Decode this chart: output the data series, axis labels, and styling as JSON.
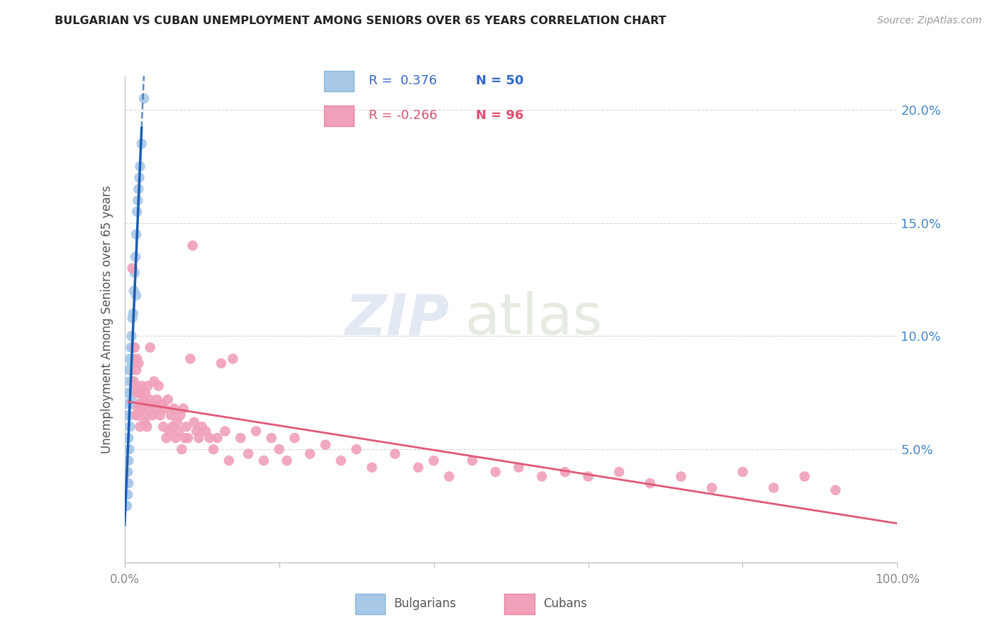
{
  "title": "BULGARIAN VS CUBAN UNEMPLOYMENT AMONG SENIORS OVER 65 YEARS CORRELATION CHART",
  "source": "Source: ZipAtlas.com",
  "ylabel": "Unemployment Among Seniors over 65 years",
  "bg_color": "#ffffff",
  "grid_color": "#cccccc",
  "bulgarian_color": "#a8c8e8",
  "cuban_color": "#f0a0b8",
  "bulgarian_line_color": "#1a5cb0",
  "cuban_line_color": "#e05878",
  "right_axis_color": "#4488cc",
  "R_bulgarian": 0.376,
  "N_bulgarian": 50,
  "R_cuban": -0.266,
  "N_cuban": 96,
  "xlim": [
    0.0,
    1.0
  ],
  "ylim": [
    0.0,
    0.215
  ],
  "yticks": [
    0.0,
    0.05,
    0.1,
    0.15,
    0.2
  ],
  "watermark_zip": "ZIP",
  "watermark_atlas": "atlas",
  "bulgarian_x": [
    0.002,
    0.002,
    0.003,
    0.003,
    0.003,
    0.003,
    0.004,
    0.004,
    0.004,
    0.004,
    0.004,
    0.005,
    0.005,
    0.005,
    0.005,
    0.005,
    0.005,
    0.006,
    0.006,
    0.006,
    0.006,
    0.006,
    0.007,
    0.007,
    0.007,
    0.007,
    0.008,
    0.008,
    0.008,
    0.009,
    0.009,
    0.009,
    0.01,
    0.01,
    0.01,
    0.011,
    0.011,
    0.012,
    0.012,
    0.013,
    0.014,
    0.015,
    0.015,
    0.016,
    0.017,
    0.018,
    0.019,
    0.02,
    0.022,
    0.025
  ],
  "bulgarian_y": [
    0.03,
    0.025,
    0.045,
    0.04,
    0.035,
    0.025,
    0.055,
    0.05,
    0.045,
    0.04,
    0.03,
    0.075,
    0.07,
    0.065,
    0.055,
    0.045,
    0.035,
    0.085,
    0.08,
    0.075,
    0.065,
    0.05,
    0.09,
    0.085,
    0.075,
    0.06,
    0.095,
    0.085,
    0.07,
    0.1,
    0.088,
    0.072,
    0.108,
    0.095,
    0.08,
    0.11,
    0.09,
    0.12,
    0.095,
    0.128,
    0.135,
    0.145,
    0.118,
    0.155,
    0.16,
    0.165,
    0.17,
    0.175,
    0.185,
    0.205
  ],
  "cuban_x": [
    0.01,
    0.012,
    0.013,
    0.014,
    0.015,
    0.015,
    0.016,
    0.016,
    0.017,
    0.018,
    0.018,
    0.019,
    0.02,
    0.02,
    0.022,
    0.023,
    0.024,
    0.025,
    0.026,
    0.027,
    0.028,
    0.029,
    0.03,
    0.03,
    0.032,
    0.033,
    0.035,
    0.036,
    0.038,
    0.04,
    0.042,
    0.044,
    0.046,
    0.048,
    0.05,
    0.052,
    0.054,
    0.056,
    0.058,
    0.06,
    0.062,
    0.064,
    0.066,
    0.068,
    0.07,
    0.072,
    0.074,
    0.076,
    0.078,
    0.08,
    0.082,
    0.085,
    0.088,
    0.09,
    0.093,
    0.096,
    0.1,
    0.105,
    0.11,
    0.115,
    0.12,
    0.125,
    0.13,
    0.135,
    0.14,
    0.15,
    0.16,
    0.17,
    0.18,
    0.19,
    0.2,
    0.21,
    0.22,
    0.24,
    0.26,
    0.28,
    0.3,
    0.32,
    0.35,
    0.38,
    0.4,
    0.42,
    0.45,
    0.48,
    0.51,
    0.54,
    0.57,
    0.6,
    0.64,
    0.68,
    0.72,
    0.76,
    0.8,
    0.84,
    0.88,
    0.92
  ],
  "cuban_y": [
    0.13,
    0.08,
    0.095,
    0.078,
    0.085,
    0.065,
    0.09,
    0.075,
    0.068,
    0.088,
    0.065,
    0.07,
    0.075,
    0.06,
    0.078,
    0.068,
    0.072,
    0.07,
    0.062,
    0.075,
    0.065,
    0.06,
    0.078,
    0.068,
    0.072,
    0.095,
    0.07,
    0.065,
    0.08,
    0.068,
    0.072,
    0.078,
    0.065,
    0.07,
    0.06,
    0.068,
    0.055,
    0.072,
    0.058,
    0.065,
    0.06,
    0.068,
    0.055,
    0.062,
    0.058,
    0.065,
    0.05,
    0.068,
    0.055,
    0.06,
    0.055,
    0.09,
    0.14,
    0.062,
    0.058,
    0.055,
    0.06,
    0.058,
    0.055,
    0.05,
    0.055,
    0.088,
    0.058,
    0.045,
    0.09,
    0.055,
    0.048,
    0.058,
    0.045,
    0.055,
    0.05,
    0.045,
    0.055,
    0.048,
    0.052,
    0.045,
    0.05,
    0.042,
    0.048,
    0.042,
    0.045,
    0.038,
    0.045,
    0.04,
    0.042,
    0.038,
    0.04,
    0.038,
    0.04,
    0.035,
    0.038,
    0.033,
    0.04,
    0.033,
    0.038,
    0.032
  ]
}
